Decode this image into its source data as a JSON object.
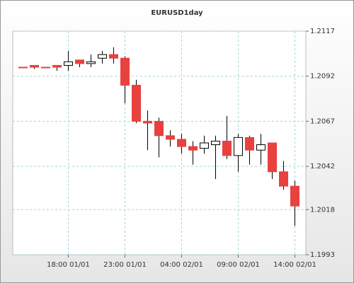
{
  "chart_data": {
    "type": "candlestick",
    "title": "EURUSD1day",
    "categories": [
      null,
      null,
      null,
      null,
      "18:00 01/01",
      null,
      null,
      null,
      null,
      "23:00 01/01",
      null,
      null,
      null,
      null,
      "04:00 02/01",
      null,
      null,
      null,
      null,
      "09:00 02/01",
      null,
      null,
      null,
      null,
      "14:00 02/01"
    ],
    "open": [
      1.2097,
      1.2098,
      1.2097,
      1.2098,
      1.2098,
      1.2101,
      1.2099,
      1.2102,
      1.2104,
      1.2102,
      1.2087,
      1.2067,
      1.2067,
      1.2059,
      1.2057,
      1.2053,
      1.2052,
      1.2054,
      1.2056,
      1.2048,
      1.2058,
      1.2051,
      1.2055,
      1.2039,
      1.2031
    ],
    "high": [
      1.2097,
      1.2098,
      1.2097,
      1.2098,
      1.2106,
      1.2101,
      1.2104,
      1.2106,
      1.2108,
      1.2103,
      1.209,
      1.2073,
      1.2069,
      1.2062,
      1.206,
      1.2056,
      1.2059,
      1.2059,
      1.207,
      1.206,
      1.2059,
      1.206,
      1.2055,
      1.2045,
      1.2034
    ],
    "low": [
      1.2097,
      1.2096,
      1.2097,
      1.2095,
      1.2095,
      1.2097,
      1.2097,
      1.2099,
      1.2099,
      1.2077,
      1.2066,
      1.2051,
      1.2047,
      1.2053,
      1.2049,
      1.2043,
      1.2049,
      1.2035,
      1.2046,
      1.2039,
      1.2043,
      1.2043,
      1.2035,
      1.2029,
      1.2009
    ],
    "close": [
      1.2097,
      1.2097,
      1.2097,
      1.2097,
      1.21,
      1.2099,
      1.21,
      1.2104,
      1.2102,
      1.2087,
      1.2067,
      1.2066,
      1.2059,
      1.2057,
      1.2053,
      1.2051,
      1.2055,
      1.2056,
      1.2048,
      1.2058,
      1.2051,
      1.2054,
      1.2039,
      1.2031,
      1.202
    ],
    "up_color": "#ffffff",
    "down_color": "#e8413f",
    "ylim": [
      1.1993,
      1.2117
    ],
    "yticks": [
      1.1993,
      1.2018,
      1.2042,
      1.2067,
      1.2092,
      1.2117
    ],
    "grid": true
  }
}
